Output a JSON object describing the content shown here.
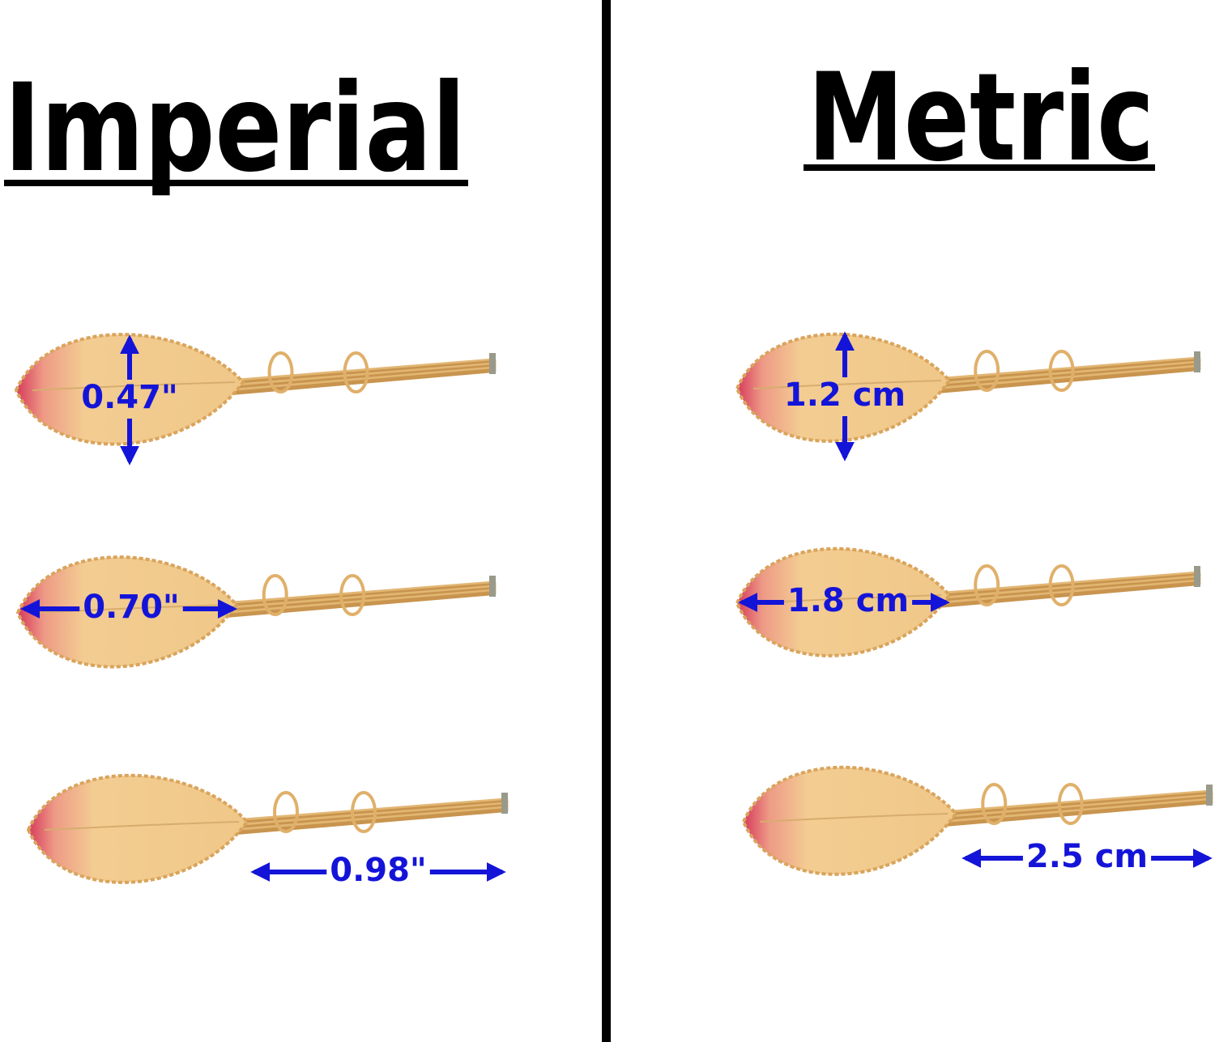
{
  "panels": [
    {
      "title": "Imperial",
      "measurements": [
        "0.47\"",
        "0.70\"",
        "0.98\""
      ]
    },
    {
      "title": "Metric",
      "measurements": [
        "1.2 cm",
        "1.8 cm",
        "2.5 cm"
      ]
    }
  ]
}
